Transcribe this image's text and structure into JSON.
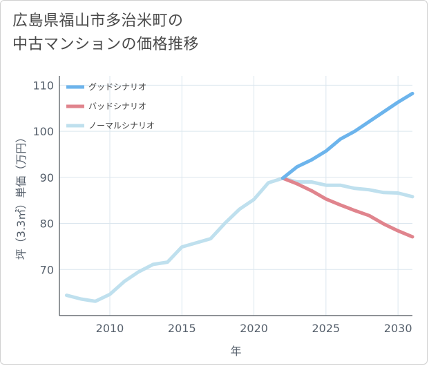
{
  "title_lines": [
    "広島県福山市多治米町の",
    "中古マンションの価格推移"
  ],
  "chart_data": {
    "type": "line",
    "title": "広島県福山市多治米町の中古マンションの価格推移",
    "xlabel": "年",
    "ylabel": "坪（3.3㎡）単価（万円）",
    "xlim": [
      2006.5,
      2031
    ],
    "ylim": [
      60,
      112
    ],
    "xticks": [
      2010,
      2015,
      2020,
      2025,
      2030
    ],
    "yticks": [
      70,
      80,
      90,
      100,
      110
    ],
    "grid": true,
    "legend_position": "top-left",
    "series": [
      {
        "name": "グッドシナリオ",
        "color": "#6cb4ec",
        "x": [
          2022,
          2023,
          2024,
          2025,
          2026,
          2027,
          2028,
          2029,
          2030,
          2031
        ],
        "y": [
          89.8,
          92.3,
          93.8,
          95.7,
          98.3,
          100.0,
          102.1,
          104.2,
          106.3,
          108.2
        ]
      },
      {
        "name": "バッドシナリオ",
        "color": "#e0848d",
        "x": [
          2022,
          2023,
          2024,
          2025,
          2026,
          2027,
          2028,
          2029,
          2030,
          2031
        ],
        "y": [
          89.8,
          88.6,
          87.1,
          85.3,
          84.0,
          82.8,
          81.7,
          79.9,
          78.4,
          77.1
        ]
      },
      {
        "name": "ノーマルシナリオ",
        "color": "#bfe0ee",
        "x": [
          2007,
          2008,
          2009,
          2010,
          2011,
          2012,
          2013,
          2014,
          2015,
          2016,
          2017,
          2018,
          2019,
          2020,
          2021,
          2022,
          2023,
          2024,
          2025,
          2026,
          2027,
          2028,
          2029,
          2030,
          2031
        ],
        "y": [
          64.4,
          63.6,
          63.1,
          64.6,
          67.4,
          69.5,
          71.1,
          71.6,
          74.9,
          75.8,
          76.7,
          80.1,
          83.1,
          85.2,
          88.8,
          89.8,
          89.0,
          89.0,
          88.3,
          88.3,
          87.6,
          87.3,
          86.7,
          86.6,
          85.8
        ]
      }
    ]
  }
}
